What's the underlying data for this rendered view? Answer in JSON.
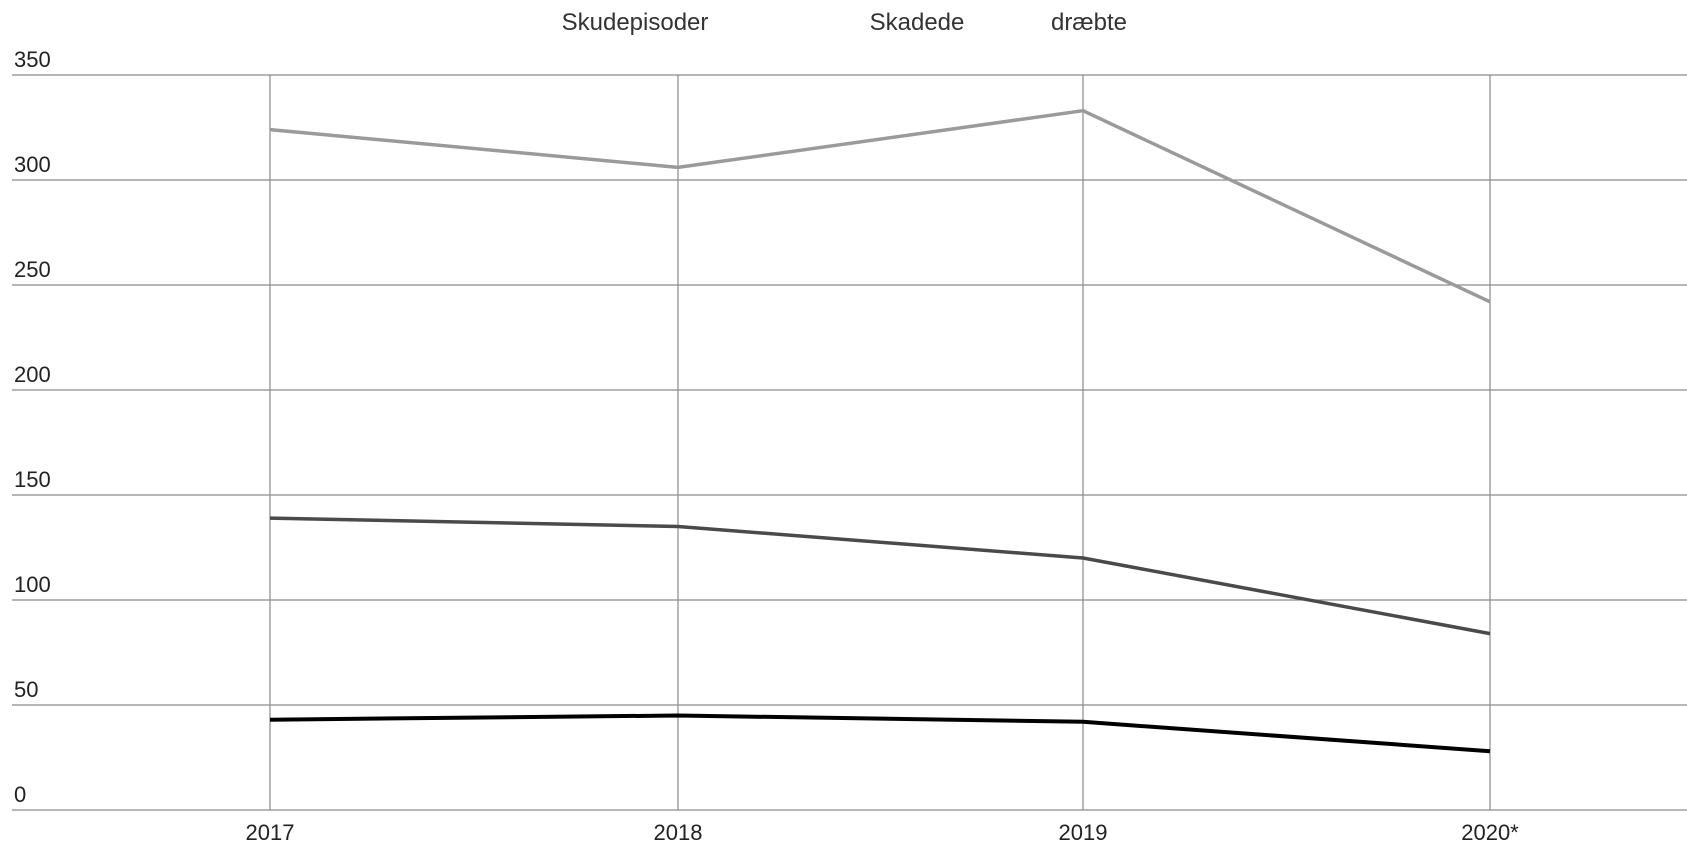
{
  "chart_data": {
    "type": "line",
    "title": "",
    "xlabel": "",
    "ylabel": "",
    "categories": [
      "2017",
      "2018",
      "2019",
      "2020*"
    ],
    "ylim": [
      0,
      350
    ],
    "yticks": [
      0,
      50,
      100,
      150,
      200,
      250,
      300,
      350
    ],
    "grid": true,
    "legend_position": "top-center",
    "series": [
      {
        "name": "Skudepisoder",
        "values": [
          324,
          306,
          333,
          242
        ],
        "color": "#9a9a9a"
      },
      {
        "name": "Skadede",
        "values": [
          139,
          135,
          120,
          84
        ],
        "color": "#4a4a4a"
      },
      {
        "name": "dræbte",
        "values": [
          43,
          45,
          42,
          28
        ],
        "color": "#000000"
      }
    ]
  }
}
